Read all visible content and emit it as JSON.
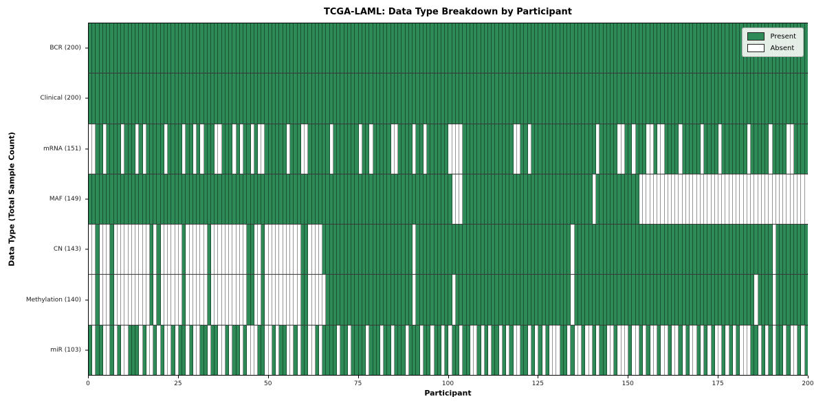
{
  "chart": {
    "title": "TCGA-LAML: Data Type Breakdown by Participant",
    "xlabel": "Participant",
    "ylabel": "Data Type (Total Sample Count)"
  },
  "legend": {
    "items": [
      {
        "label": "Present",
        "color": "#2e8b57"
      },
      {
        "label": "Absent",
        "color": "#ffffff"
      }
    ]
  },
  "chart_data": {
    "type": "heatmap",
    "title": "TCGA-LAML: Data Type Breakdown by Participant",
    "xlabel": "Participant",
    "ylabel": "Data Type (Total Sample Count)",
    "xlim": [
      0,
      200
    ],
    "x_ticks": [
      0,
      25,
      50,
      75,
      100,
      125,
      150,
      175,
      200
    ],
    "n_participants": 200,
    "present_color": "#2e8b57",
    "absent_color": "#ffffff",
    "cell_edge_color": "rgba(0,0,0,0.42)",
    "legend_position": "upper right",
    "value_encoding": "1=Present, 0=Absent, one character per participant (columns 0-199)",
    "rows": [
      {
        "label": "BCR (200)",
        "total": 200,
        "values": [
          "1111111111",
          "1111111111",
          "1111111111",
          "1111111111",
          "1111111111",
          "1111111111",
          "1111111111",
          "1111111111",
          "1111111111",
          "1111111111",
          "1111111111",
          "1111111111",
          "1111111111",
          "1111111111",
          "1111111111",
          "1111111111",
          "1111111111",
          "1111111111",
          "1111111111",
          "1111111111"
        ]
      },
      {
        "label": "Clinical (200)",
        "total": 200,
        "values": [
          "1111111111",
          "1111111111",
          "1111111111",
          "1111111111",
          "1111111111",
          "1111111111",
          "1111111111",
          "1111111111",
          "1111111111",
          "1111111111",
          "1111111111",
          "1111111111",
          "1111111111",
          "1111111111",
          "1111111111",
          "1111111111",
          "1111111111",
          "1111111111",
          "1111111111",
          "1111111111"
        ]
      },
      {
        "label": "mRNA (151)",
        "total": 151,
        "values": [
          "0011011110",
          "1110101111",
          "1011110110",
          "1011100111",
          "0101101001",
          "1111101110",
          "0111111011",
          "1111101101",
          "1111001111",
          "0110111111",
          "0000111111",
          "1111111100",
          "1101111111",
          "1111111111",
          "1011111001",
          "1011100100",
          "1111011111",
          "0111101111",
          "1110111110",
          "1111001111"
        ]
      },
      {
        "label": "MAF (149)",
        "total": 149,
        "values": [
          "1111111111",
          "1111111111",
          "1111111111",
          "1111111111",
          "1111111111",
          "1111111111",
          "1111111111",
          "1111111111",
          "1111111111",
          "1111111111",
          "1000111111",
          "1111111111",
          "1111111111",
          "1111111111",
          "0111111111",
          "1110000000",
          "0000000000",
          "0000000000",
          "0000000000",
          "0000000000"
        ]
      },
      {
        "label": "CN (143)",
        "total": 143,
        "values": [
          "0010001000",
          "0000000101",
          "0000001000",
          "0001000000",
          "0000110010",
          "0000000001",
          "1000011111",
          "1111111111",
          "1111111111",
          "0111111111",
          "1111111111",
          "1111111111",
          "1111111111",
          "1111011111",
          "1111111111",
          "1111111111",
          "1111111111",
          "1111111111",
          "1111111111",
          "0111111111"
        ]
      },
      {
        "label": "Methylation (140)",
        "total": 140,
        "values": [
          "0010001000",
          "0000000101",
          "0000001000",
          "0001000000",
          "0000110010",
          "0000000001",
          "1000001111",
          "1111111111",
          "1111111111",
          "0111111111",
          "1011111111",
          "1111111111",
          "1111111111",
          "1111011111",
          "1111111111",
          "1111111111",
          "1111111111",
          "1111111111",
          "1111101111",
          "0111111111"
        ]
      },
      {
        "label": "miR (103)",
        "total": 103,
        "values": [
          "1011001010",
          "0111010010",
          "1001011010",
          "0110110010",
          "1101000110",
          "0101100101",
          "1001011110",
          "1101111011",
          "1011011101",
          "1101101101",
          "0110110010",
          "1011010100",
          "1101010100",
          "0110100100",
          "1011001000",
          "1001010010",
          "0100101001",
          "0101001010",
          "1000110101",
          "0110100101"
        ]
      }
    ]
  }
}
